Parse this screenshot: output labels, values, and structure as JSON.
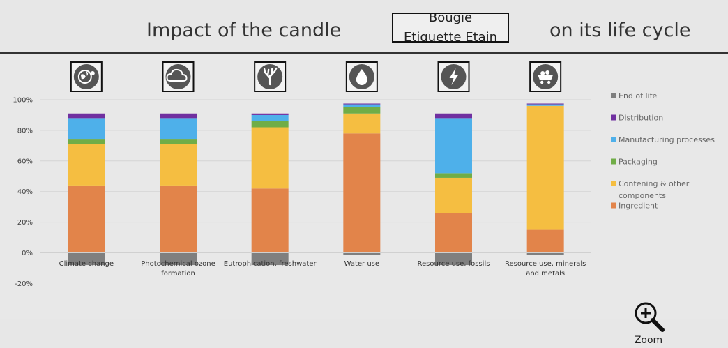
{
  "header": {
    "title_left": "Impact of the candle",
    "product_line1": "Bougie",
    "product_line2": "Etiquette Etain",
    "title_right": "on its life cycle"
  },
  "zoom": {
    "label": "Zoom"
  },
  "colors": {
    "End of life": "#7f7f7f",
    "Distribution": "#7030a0",
    "Manufacturing processes": "#4eb0ea",
    "Packaging": "#70ad47",
    "Contening & other components": "#f5be41",
    "Ingredient": "#e2844a"
  },
  "chart_data": {
    "type": "bar",
    "stacked": true,
    "categories": [
      "Climate change",
      "Photochemical ozone formation",
      "Eutrophication, freshwater",
      "Water use",
      "Resource use, fossils",
      "Resource use, minerals and metals"
    ],
    "category_icons": [
      "globe-icon",
      "cloud-icon",
      "coral-icon",
      "water-drop-icon",
      "lightning-icon",
      "mine-cart-icon"
    ],
    "ylim": [
      -20,
      100
    ],
    "yticks": [
      "100%",
      "80%",
      "60%",
      "40%",
      "20%",
      "0%",
      "-20%"
    ],
    "ytick_values": [
      100,
      80,
      60,
      40,
      20,
      0,
      -20
    ],
    "legend_position": "right",
    "series": [
      {
        "name": "Ingredient",
        "values": [
          44,
          44,
          42,
          78,
          26,
          15
        ]
      },
      {
        "name": "Contening & other components",
        "values": [
          27,
          27,
          40,
          13,
          23,
          81
        ]
      },
      {
        "name": "Packaging",
        "values": [
          3,
          3,
          4,
          4,
          3,
          0
        ]
      },
      {
        "name": "Manufacturing processes",
        "values": [
          14,
          14,
          4,
          2,
          36,
          1
        ]
      },
      {
        "name": "Distribution",
        "values": [
          3,
          3,
          1,
          0.5,
          3,
          0.5
        ]
      },
      {
        "name": "End of life",
        "values": [
          -8,
          -8,
          -8,
          -1.5,
          -8,
          -1.5
        ]
      }
    ],
    "legend": [
      {
        "name": "End of life",
        "lines": [
          "End of life"
        ]
      },
      {
        "name": "Distribution",
        "lines": [
          "Distribution"
        ]
      },
      {
        "name": "Manufacturing processes",
        "lines": [
          "Manufacturing processes"
        ]
      },
      {
        "name": "Packaging",
        "lines": [
          "Packaging"
        ]
      },
      {
        "name": "Contening & other components",
        "lines": [
          "Contening & other",
          "components"
        ]
      },
      {
        "name": "Ingredient",
        "lines": [
          "Ingredient"
        ]
      }
    ],
    "category_label_lines": [
      [
        "Climate change"
      ],
      [
        "Photochemical ozone",
        "formation"
      ],
      [
        "Eutrophication, freshwater"
      ],
      [
        "Water use"
      ],
      [
        "Resource use, fossils"
      ],
      [
        "Resource use, minerals",
        "and metals"
      ]
    ]
  }
}
